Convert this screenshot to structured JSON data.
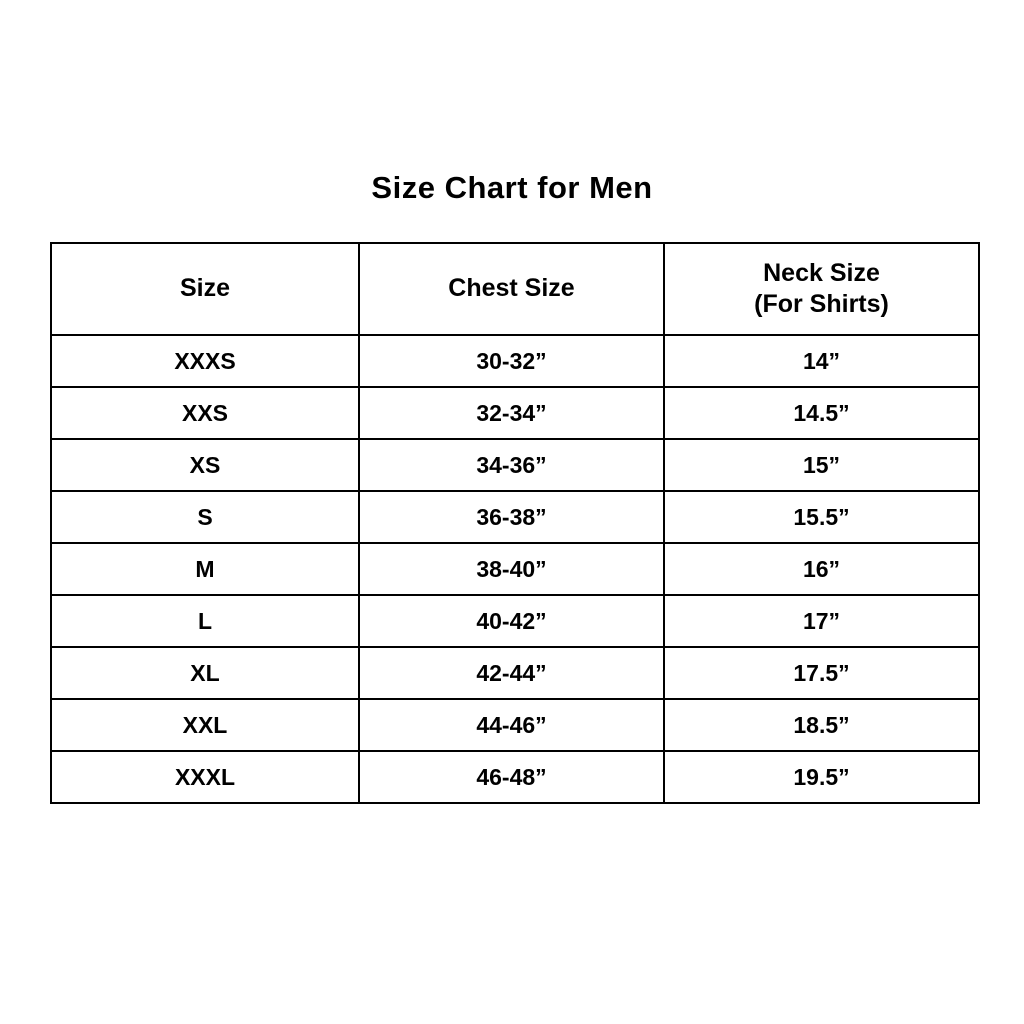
{
  "title": "Size Chart for Men",
  "table": {
    "headers": {
      "size": "Size",
      "chest": "Chest Size",
      "neck_line1": "Neck Size",
      "neck_line2": "(For Shirts)"
    },
    "rows": [
      {
        "size": "XXXS",
        "chest": "30-32”",
        "neck": "14”"
      },
      {
        "size": "XXS",
        "chest": "32-34”",
        "neck": "14.5”"
      },
      {
        "size": "XS",
        "chest": "34-36”",
        "neck": "15”"
      },
      {
        "size": "S",
        "chest": "36-38”",
        "neck": "15.5”"
      },
      {
        "size": "M",
        "chest": "38-40”",
        "neck": "16”"
      },
      {
        "size": "L",
        "chest": "40-42”",
        "neck": "17”"
      },
      {
        "size": "XL",
        "chest": "42-44”",
        "neck": "17.5”"
      },
      {
        "size": "XXL",
        "chest": "44-46”",
        "neck": "18.5”"
      },
      {
        "size": "XXXL",
        "chest": "46-48”",
        "neck": "19.5”"
      }
    ]
  },
  "colors": {
    "background": "#ffffff",
    "border": "#000000",
    "text": "#000000"
  }
}
